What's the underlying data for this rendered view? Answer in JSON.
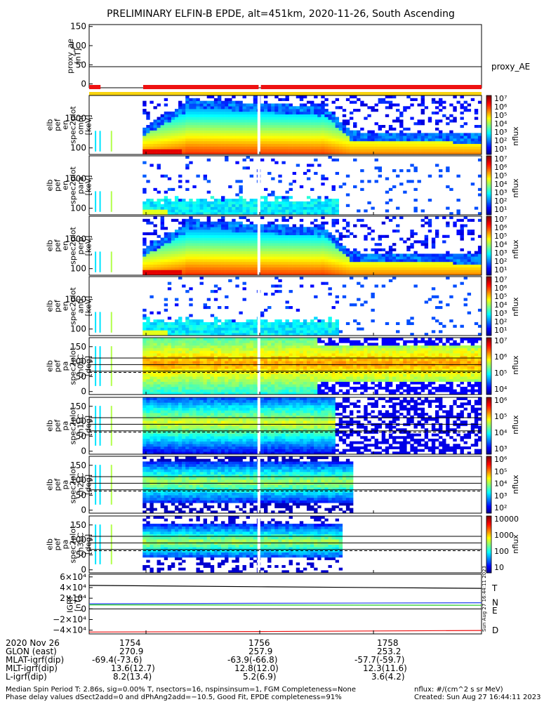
{
  "title": "PRELIMINARY ELFIN-B EPDE, alt=451km, 2020-11-26, South Ascending",
  "colors": {
    "bar_red": "#ee1111",
    "bar_yellow": "#f7d310",
    "igrf_T": "#000000",
    "igrf_N": "#2244ee",
    "igrf_E": "#22cc22",
    "igrf_D": "#ee1111"
  },
  "chart_data": [
    {
      "type": "line",
      "id": "proxy_ae",
      "ylabel": [
        "proxy_ae",
        "[nT]"
      ],
      "yticks": [
        "150",
        "100",
        "50",
        "0"
      ],
      "ylim": [
        -10,
        155
      ],
      "series": [
        {
          "name": "proxy_AE",
          "x": [
            1753.0,
            1759.9
          ],
          "y": [
            45,
            45
          ]
        }
      ]
    },
    {
      "type": "heatmap",
      "id": "status_bars",
      "rows": [
        {
          "color": "red",
          "segments": [
            [
              1753.0,
              1753.2
            ],
            [
              1753.95,
              1755.98
            ],
            [
              1756.02,
              1759.9
            ]
          ]
        },
        {
          "color": "yellow",
          "segments": [
            [
              1753.0,
              1759.9
            ]
          ]
        }
      ]
    },
    {
      "type": "heatmap",
      "id": "en_omni",
      "ylabel": [
        "elb",
        "pef",
        "en",
        "spec2plot",
        "omni",
        "[keV]"
      ],
      "yticks": [
        "1000",
        "100"
      ],
      "ytick_values": [
        1000,
        100
      ],
      "yscale": "log",
      "ylim": [
        60,
        6000
      ],
      "colorbar": {
        "label": "nflux",
        "ticks": [
          "10⁷",
          "10⁶",
          "10⁵",
          "10⁴",
          "10³",
          "10²",
          "10¹"
        ]
      }
    },
    {
      "type": "heatmap",
      "id": "en_para",
      "ylabel": [
        "elb",
        "pef",
        "en",
        "spec2plot",
        "para",
        "[keV]"
      ],
      "yticks": [
        "1000",
        "100"
      ],
      "ytick_values": [
        1000,
        100
      ],
      "yscale": "log",
      "ylim": [
        60,
        6000
      ],
      "colorbar": {
        "label": "nflux",
        "ticks": [
          "10⁷",
          "10⁶",
          "10⁵",
          "10⁴",
          "10³",
          "10²",
          "10¹"
        ]
      }
    },
    {
      "type": "heatmap",
      "id": "en_perp",
      "ylabel": [
        "elb",
        "pef",
        "en",
        "spec2plot",
        "perp",
        "[keV]"
      ],
      "yticks": [
        "1000",
        "100"
      ],
      "ytick_values": [
        1000,
        100
      ],
      "yscale": "log",
      "ylim": [
        60,
        6000
      ],
      "colorbar": {
        "label": "nflux",
        "ticks": [
          "10⁷",
          "10⁶",
          "10⁵",
          "10⁴",
          "10³",
          "10²",
          "10¹"
        ]
      }
    },
    {
      "type": "heatmap",
      "id": "en_anti",
      "ylabel": [
        "elb",
        "pef",
        "en",
        "spec2plot",
        "anti",
        "[keV]"
      ],
      "yticks": [
        "1000",
        "100"
      ],
      "ytick_values": [
        1000,
        100
      ],
      "yscale": "log",
      "ylim": [
        60,
        6000
      ],
      "colorbar": {
        "label": "nflux",
        "ticks": [
          "10⁷",
          "10⁶",
          "10⁵",
          "10⁴",
          "10³",
          "10²",
          "10¹"
        ]
      }
    },
    {
      "type": "heatmap",
      "id": "pa_ch0",
      "ylabel": [
        "elb",
        "pef",
        "pa",
        "spec2plot",
        "ch0LC",
        "[deg]"
      ],
      "yticks": [
        "150",
        "100",
        "50",
        "0"
      ],
      "ytick_values": [
        150,
        100,
        50,
        0
      ],
      "yscale": "linear",
      "ylim": [
        -10,
        180
      ],
      "colorbar": {
        "label": "nflux",
        "ticks": [
          "10⁷",
          "10⁶",
          "10⁵",
          "10⁴"
        ]
      }
    },
    {
      "type": "heatmap",
      "id": "pa_ch1",
      "ylabel": [
        "elb",
        "pef",
        "pa",
        "spec2plot",
        "ch1LC",
        "[deg]"
      ],
      "yticks": [
        "150",
        "100",
        "50",
        "0"
      ],
      "ytick_values": [
        150,
        100,
        50,
        0
      ],
      "yscale": "linear",
      "ylim": [
        -10,
        180
      ],
      "colorbar": {
        "label": "nflux",
        "ticks": [
          "10⁶",
          "10⁵",
          "10⁴",
          "10³"
        ]
      }
    },
    {
      "type": "heatmap",
      "id": "pa_ch2",
      "ylabel": [
        "elb",
        "pef",
        "pa",
        "spec2plot",
        "ch2LC",
        "[deg]"
      ],
      "yticks": [
        "150",
        "100",
        "50",
        "0"
      ],
      "ytick_values": [
        150,
        100,
        50,
        0
      ],
      "yscale": "linear",
      "ylim": [
        -10,
        180
      ],
      "colorbar": {
        "label": "nflux",
        "ticks": [
          "10⁶",
          "10⁵",
          "10⁴",
          "10³",
          "10²"
        ]
      }
    },
    {
      "type": "heatmap",
      "id": "pa_ch3",
      "ylabel": [
        "elb",
        "pef",
        "pa",
        "spec2plot",
        "ch3LC",
        "[deg]"
      ],
      "yticks": [
        "150",
        "100",
        "50",
        "0"
      ],
      "ytick_values": [
        150,
        100,
        50,
        0
      ],
      "yscale": "linear",
      "ylim": [
        -10,
        180
      ],
      "colorbar": {
        "label": "nflux",
        "ticks": [
          "10000",
          "1000",
          "100",
          "10"
        ]
      }
    },
    {
      "type": "line",
      "id": "igrf",
      "ylabel": [
        "IGRF",
        "[nT]"
      ],
      "yticks": [
        "6×10⁴",
        "4×10⁴",
        "2×10⁴",
        "0",
        "−2×10⁴",
        "−4×10⁴"
      ],
      "ytick_values": [
        60000,
        40000,
        20000,
        0,
        -20000,
        -40000
      ],
      "ylim": [
        -47000,
        65000
      ],
      "series": [
        {
          "name": "T",
          "x": [
            1753.0,
            1756.0,
            1759.9
          ],
          "y": [
            44000,
            41500,
            38500
          ]
        },
        {
          "name": "N",
          "x": [
            1753.0,
            1756.0,
            1759.9
          ],
          "y": [
            9500,
            10500,
            11500
          ]
        },
        {
          "name": "E",
          "x": [
            1753.0,
            1756.0,
            1759.9
          ],
          "y": [
            7500,
            7200,
            6800
          ]
        },
        {
          "name": "D",
          "x": [
            1753.0,
            1756.0,
            1759.9
          ],
          "y": [
            -43500,
            -42500,
            -40500
          ]
        }
      ],
      "side_text": "Sun Aug 27 16:44:11 2023"
    }
  ],
  "xaxis": {
    "row_labels": [
      "2020 Nov 26",
      "GLON (east)",
      "MLAT-igrf(dip)",
      "MLT-igrf(dip)",
      "L-igrf(dip)"
    ],
    "ticks": [
      {
        "x": 1754,
        "values": [
          "1754",
          "270.9",
          "-69.4(-73.6)",
          "13.6(12.7)",
          "8.2(13.4)"
        ]
      },
      {
        "x": 1756,
        "values": [
          "1756",
          "257.9",
          "-63.9(-66.8)",
          "12.8(12.0)",
          "5.2(6.9)"
        ]
      },
      {
        "x": 1758,
        "values": [
          "1758",
          "253.2",
          "-57.7(-59.7)",
          "12.3(11.6)",
          "3.6(4.2)"
        ]
      }
    ]
  },
  "footer": {
    "line1": "Median Spin Period T: 2.86s, sig=0.00% T, nsectors=16, nspinsinsum=1, FGM Completeness=None",
    "line2": "Phase delay values dSect2add=0 and dPhAng2add=−10.5, Good Fit, EPDE completeness=91%",
    "units": "nflux: #/(cm^2 s sr MeV)",
    "created": "Created: Sun Aug 27 16:44:11 2023"
  }
}
